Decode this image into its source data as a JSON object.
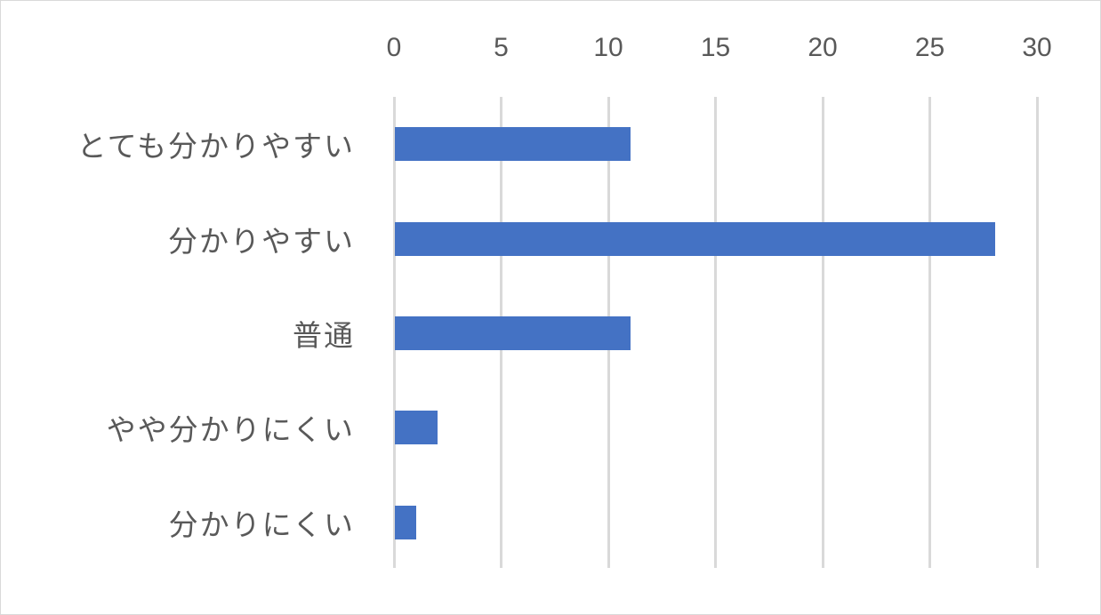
{
  "chart_data": {
    "type": "bar",
    "orientation": "horizontal",
    "title": "",
    "xlabel": "",
    "ylabel": "",
    "categories": [
      "とても分かりやすい",
      "分かりやすい",
      "普通",
      "やや分かりにくい",
      "分かりにくい"
    ],
    "values": [
      11,
      28,
      11,
      2,
      1
    ],
    "xlim": [
      0,
      30
    ],
    "xticks": [
      "0",
      "5",
      "10",
      "15",
      "20",
      "25",
      "30"
    ],
    "grid": true,
    "legend": null,
    "bar_color": "#4472c4",
    "axis_position": "top"
  }
}
